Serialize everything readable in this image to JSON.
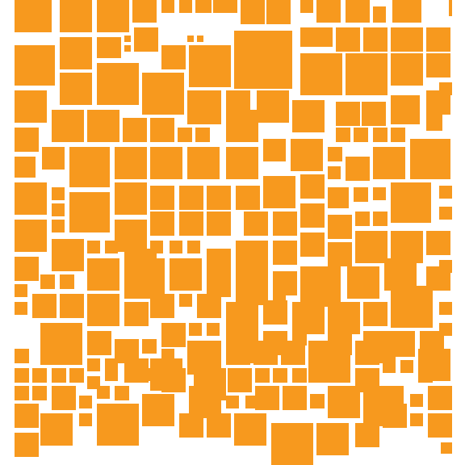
{
  "colors": {
    "background": "#ffffff",
    "tile": "#f7991e"
  }
}
